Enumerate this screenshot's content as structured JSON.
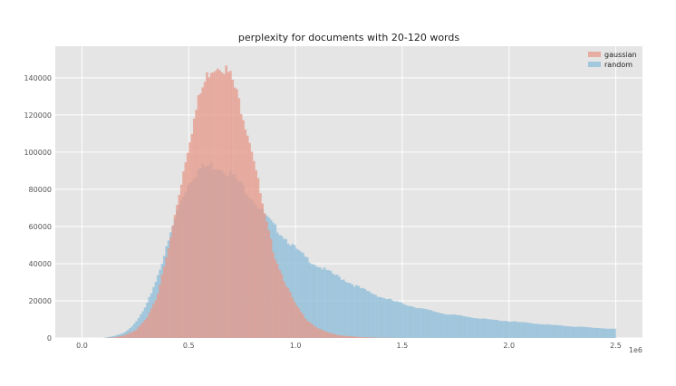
{
  "chart_data": {
    "type": "histogram",
    "title": "perplexity for documents with 20-120 words",
    "xlabel": "",
    "ylabel": "",
    "x_offset_label": "1e6",
    "xlim": [
      -0.125,
      2.625
    ],
    "ylim": [
      0,
      157000
    ],
    "x_ticks": [
      0.0,
      0.5,
      1.0,
      1.5,
      2.0,
      2.5
    ],
    "x_tick_labels": [
      "0.0",
      "0.5",
      "1.0",
      "1.5",
      "2.0",
      "2.5"
    ],
    "y_ticks": [
      0,
      20000,
      40000,
      60000,
      80000,
      100000,
      120000,
      140000
    ],
    "y_tick_labels": [
      "0",
      "20000",
      "40000",
      "60000",
      "80000",
      "100000",
      "120000",
      "140000"
    ],
    "grid": true,
    "legend_position": "top-right",
    "series": [
      {
        "name": "gaussian",
        "color": "#e5998b",
        "opacity": 0.75,
        "x": [
          0.1,
          0.15,
          0.2,
          0.25,
          0.3,
          0.35,
          0.4,
          0.45,
          0.5,
          0.55,
          0.6,
          0.65,
          0.7,
          0.75,
          0.8,
          0.85,
          0.9,
          0.95,
          1.0,
          1.05,
          1.1,
          1.15,
          1.2,
          1.3,
          1.4,
          1.5
        ],
        "y": [
          0,
          300,
          1500,
          4000,
          10000,
          22000,
          45000,
          75000,
          105000,
          130000,
          145000,
          148000,
          140000,
          122000,
          100000,
          68000,
          45000,
          30000,
          18000,
          10000,
          5500,
          3000,
          1500,
          500,
          150,
          0
        ]
      },
      {
        "name": "random",
        "color": "#92bfd9",
        "opacity": 0.8,
        "x": [
          0.1,
          0.15,
          0.2,
          0.25,
          0.3,
          0.35,
          0.4,
          0.45,
          0.5,
          0.55,
          0.6,
          0.65,
          0.7,
          0.75,
          0.8,
          0.85,
          0.9,
          0.95,
          1.0,
          1.05,
          1.1,
          1.2,
          1.3,
          1.4,
          1.5,
          1.6,
          1.7,
          1.8,
          1.9,
          2.0,
          2.1,
          2.2,
          2.3,
          2.4,
          2.5
        ],
        "y": [
          0,
          1000,
          3000,
          8000,
          17000,
          32000,
          50000,
          70000,
          84000,
          91000,
          93000,
          92000,
          88000,
          82000,
          75000,
          67000,
          60000,
          54000,
          48000,
          43000,
          39000,
          33000,
          27000,
          22000,
          18500,
          15500,
          13000,
          11500,
          10000,
          9000,
          8000,
          7000,
          6200,
          5500,
          4800
        ]
      }
    ]
  }
}
